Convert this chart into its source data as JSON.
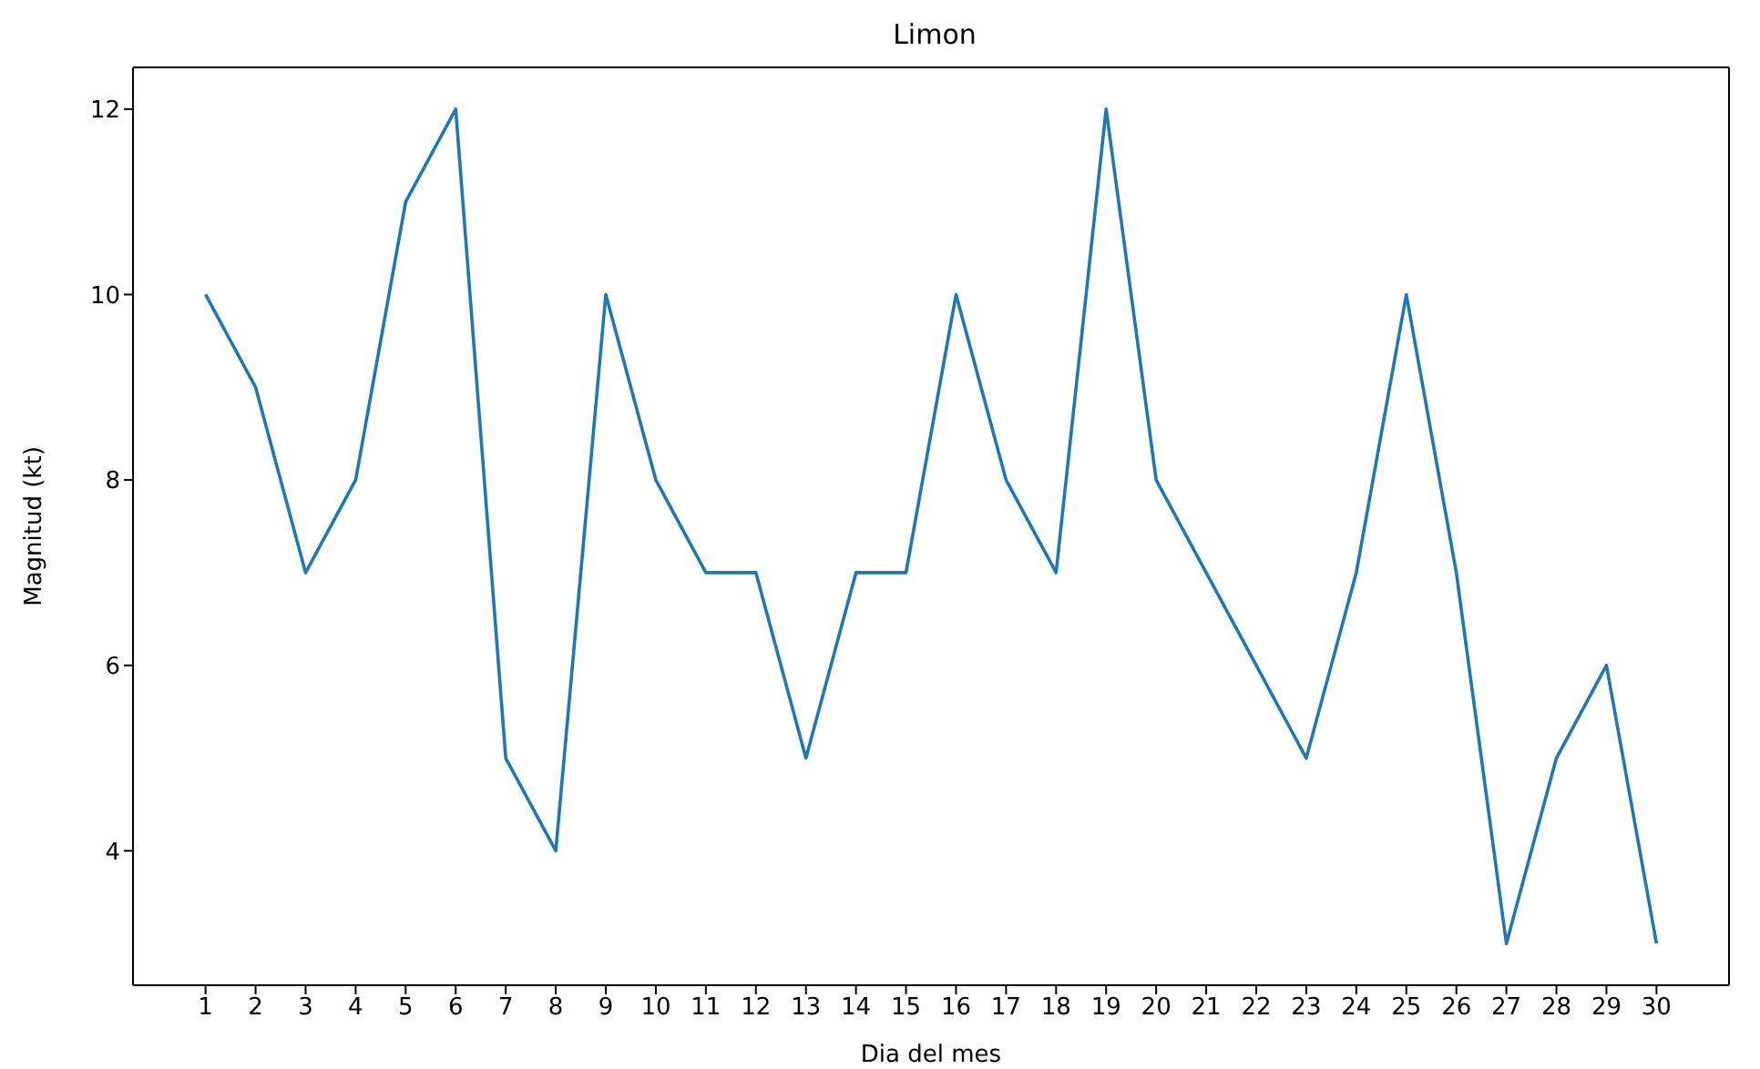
{
  "chart_data": {
    "type": "line",
    "title": "Limon",
    "xlabel": "Dia del mes",
    "ylabel": "Magnitud (kt)",
    "x": [
      1,
      2,
      3,
      4,
      5,
      6,
      7,
      8,
      9,
      10,
      11,
      12,
      13,
      14,
      15,
      16,
      17,
      18,
      19,
      20,
      21,
      22,
      23,
      24,
      25,
      26,
      27,
      28,
      29,
      30
    ],
    "series": [
      {
        "color": "#1f77b4",
        "values": [
          10,
          9,
          7,
          8,
          11,
          12,
          5,
          4,
          10,
          8,
          7,
          7,
          5,
          7,
          7,
          10,
          8,
          7,
          12,
          8,
          7,
          6,
          5,
          7,
          10,
          7,
          3,
          5,
          6,
          3
        ]
      }
    ],
    "xlim": [
      -0.45,
      31.45
    ],
    "xticks": [
      1,
      2,
      3,
      4,
      5,
      6,
      7,
      8,
      9,
      10,
      11,
      12,
      13,
      14,
      15,
      16,
      17,
      18,
      19,
      20,
      21,
      22,
      23,
      24,
      25,
      26,
      27,
      28,
      29,
      30
    ],
    "ylim": [
      2.55,
      12.45
    ],
    "yticks": [
      4,
      6,
      8,
      10,
      12
    ],
    "grid": false,
    "legend": false,
    "marker": "none",
    "line_style": "solid"
  }
}
